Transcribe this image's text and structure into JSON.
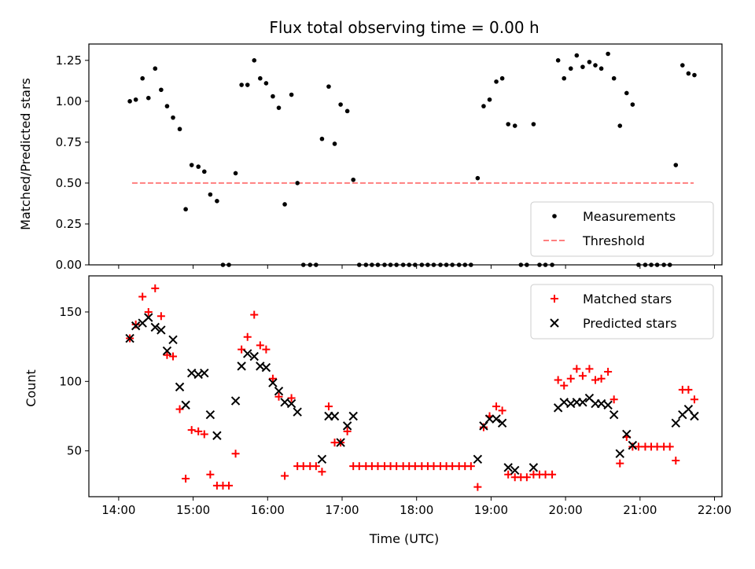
{
  "chart_data": [
    {
      "type": "scatter",
      "title": "Flux total observing time = 0.00 h",
      "xlabel": "",
      "ylabel": "Matched/Predicted stars",
      "xlim": [
        13.6,
        22.1
      ],
      "ylim": [
        0.0,
        1.35
      ],
      "x_ticks": [
        14,
        15,
        16,
        17,
        18,
        19,
        20,
        21,
        22
      ],
      "x_tick_labels_visible": false,
      "y_ticks": [
        0.0,
        0.25,
        0.5,
        0.75,
        1.0,
        1.25
      ],
      "y_tick_labels": [
        "0.00",
        "0.25",
        "0.50",
        "0.75",
        "1.00",
        "1.25"
      ],
      "legend": {
        "placement": "lower-right",
        "entries": [
          {
            "key": "measurements",
            "label": "Measurements",
            "marker": "dot",
            "color": "#000000"
          },
          {
            "key": "threshold",
            "label": "Threshold",
            "marker": "dashed-line",
            "color": "#ff7f7f"
          }
        ]
      },
      "threshold": {
        "value": 0.5,
        "x_range": [
          14.18,
          21.72
        ],
        "color": "#ff7f7f"
      },
      "series": [
        {
          "name": "Measurements",
          "color": "#000000",
          "x": [
            14.15,
            14.23,
            14.32,
            14.4,
            14.49,
            14.57,
            14.65,
            14.73,
            14.82,
            14.9,
            14.98,
            15.07,
            15.15,
            15.23,
            15.32,
            15.4,
            15.48,
            15.57,
            15.65,
            15.73,
            15.82,
            15.9,
            15.98,
            16.07,
            16.15,
            16.23,
            16.32,
            16.4,
            16.48,
            16.57,
            16.65,
            16.73,
            16.82,
            16.9,
            16.98,
            17.07,
            17.15,
            17.23,
            17.32,
            17.4,
            17.48,
            17.57,
            17.65,
            17.73,
            17.82,
            17.9,
            17.98,
            18.07,
            18.15,
            18.23,
            18.32,
            18.4,
            18.48,
            18.57,
            18.65,
            18.73,
            18.82,
            18.9,
            18.98,
            19.07,
            19.15,
            19.23,
            19.32,
            19.4,
            19.48,
            19.57,
            19.65,
            19.73,
            19.82,
            19.9,
            19.98,
            20.07,
            20.15,
            20.23,
            20.32,
            20.4,
            20.48,
            20.57,
            20.65,
            20.73,
            20.82,
            20.9,
            20.98,
            21.07,
            21.15,
            21.23,
            21.32,
            21.4,
            21.48,
            21.57,
            21.65,
            21.73
          ],
          "y": [
            1.0,
            1.01,
            1.14,
            1.02,
            1.2,
            1.07,
            0.97,
            0.9,
            0.83,
            0.34,
            0.61,
            0.6,
            0.57,
            0.43,
            0.39,
            0.0,
            0.0,
            0.56,
            1.1,
            1.1,
            1.25,
            1.14,
            1.11,
            1.03,
            0.96,
            0.37,
            1.04,
            0.5,
            0.0,
            0.0,
            0.0,
            0.77,
            1.09,
            0.74,
            0.98,
            0.94,
            0.52,
            0.0,
            0.0,
            0.0,
            0.0,
            0.0,
            0.0,
            0.0,
            0.0,
            0.0,
            0.0,
            0.0,
            0.0,
            0.0,
            0.0,
            0.0,
            0.0,
            0.0,
            0.0,
            0.0,
            0.53,
            0.97,
            1.01,
            1.12,
            1.14,
            0.86,
            0.85,
            0.0,
            0.0,
            0.86,
            0.0,
            0.0,
            0.0,
            1.25,
            1.14,
            1.2,
            1.28,
            1.21,
            1.24,
            1.22,
            1.2,
            1.29,
            1.14,
            0.85,
            1.05,
            0.98,
            0.0,
            0.0,
            0.0,
            0.0,
            0.0,
            0.0,
            0.61,
            1.22,
            1.17,
            1.16
          ]
        }
      ]
    },
    {
      "type": "scatter",
      "title": "",
      "xlabel": "Time (UTC)",
      "ylabel": "Count",
      "xlim": [
        13.6,
        22.1
      ],
      "ylim": [
        17,
        176
      ],
      "x_ticks": [
        14,
        15,
        16,
        17,
        18,
        19,
        20,
        21,
        22
      ],
      "x_tick_labels": [
        "14:00",
        "15:00",
        "16:00",
        "17:00",
        "18:00",
        "19:00",
        "20:00",
        "21:00",
        "22:00"
      ],
      "y_ticks": [
        50,
        100,
        150
      ],
      "y_tick_labels": [
        "50",
        "100",
        "150"
      ],
      "legend": {
        "placement": "top-right",
        "entries": [
          {
            "key": "matched",
            "label": "Matched stars",
            "marker": "plus",
            "color": "#ff0000"
          },
          {
            "key": "predicted",
            "label": "Predicted stars",
            "marker": "x",
            "color": "#000000"
          }
        ]
      },
      "series": [
        {
          "name": "Matched stars",
          "color": "#ff0000",
          "x": [
            14.15,
            14.23,
            14.32,
            14.4,
            14.49,
            14.57,
            14.65,
            14.73,
            14.82,
            14.9,
            14.98,
            15.07,
            15.15,
            15.23,
            15.32,
            15.4,
            15.48,
            15.57,
            15.65,
            15.73,
            15.82,
            15.9,
            15.98,
            16.07,
            16.15,
            16.23,
            16.32,
            16.4,
            16.48,
            16.57,
            16.65,
            16.73,
            16.82,
            16.9,
            16.98,
            17.07,
            17.15,
            17.23,
            17.32,
            17.4,
            17.48,
            17.57,
            17.65,
            17.73,
            17.82,
            17.9,
            17.98,
            18.07,
            18.15,
            18.23,
            18.32,
            18.4,
            18.48,
            18.57,
            18.65,
            18.73,
            18.82,
            18.9,
            18.98,
            19.07,
            19.15,
            19.23,
            19.32,
            19.4,
            19.48,
            19.57,
            19.65,
            19.73,
            19.82,
            19.9,
            19.98,
            20.07,
            20.15,
            20.23,
            20.32,
            20.4,
            20.48,
            20.57,
            20.65,
            20.73,
            20.82,
            20.9,
            20.98,
            21.07,
            21.15,
            21.23,
            21.32,
            21.4,
            21.48,
            21.57,
            21.65,
            21.73
          ],
          "y": [
            131,
            141,
            161,
            150,
            167,
            147,
            119,
            118,
            80,
            30,
            65,
            64,
            62,
            33,
            25,
            25,
            25,
            48,
            123,
            132,
            148,
            126,
            123,
            102,
            89,
            32,
            88,
            39,
            39,
            39,
            39,
            35,
            82,
            56,
            56,
            64,
            39,
            39,
            39,
            39,
            39,
            39,
            39,
            39,
            39,
            39,
            39,
            39,
            39,
            39,
            39,
            39,
            39,
            39,
            39,
            39,
            24,
            67,
            75,
            82,
            79,
            33,
            31,
            31,
            31,
            33,
            33,
            33,
            33,
            101,
            97,
            102,
            109,
            104,
            109,
            101,
            102,
            107,
            87,
            41,
            60,
            53,
            53,
            53,
            53,
            53,
            53,
            53,
            43,
            94,
            94,
            87
          ]
        },
        {
          "name": "Predicted stars",
          "color": "#000000",
          "x": [
            14.15,
            14.23,
            14.32,
            14.4,
            14.49,
            14.57,
            14.65,
            14.73,
            14.82,
            14.9,
            14.98,
            15.07,
            15.15,
            15.23,
            15.32,
            15.57,
            15.65,
            15.73,
            15.82,
            15.9,
            15.98,
            16.07,
            16.15,
            16.23,
            16.32,
            16.4,
            16.73,
            16.82,
            16.9,
            16.98,
            17.07,
            17.15,
            18.82,
            18.9,
            18.98,
            19.07,
            19.15,
            19.23,
            19.32,
            19.57,
            19.9,
            19.98,
            20.07,
            20.15,
            20.23,
            20.32,
            20.4,
            20.48,
            20.57,
            20.65,
            20.73,
            20.82,
            20.9,
            21.48,
            21.57,
            21.65,
            21.73
          ],
          "y": [
            131,
            140,
            142,
            146,
            139,
            137,
            122,
            130,
            96,
            83,
            106,
            105,
            106,
            76,
            61,
            86,
            111,
            120,
            118,
            111,
            110,
            99,
            93,
            85,
            84,
            78,
            44,
            75,
            75,
            56,
            68,
            75,
            44,
            68,
            73,
            73,
            70,
            38,
            36,
            38,
            81,
            85,
            84,
            85,
            85,
            88,
            84,
            84,
            83,
            76,
            48,
            62,
            54,
            70,
            76,
            80,
            75
          ]
        }
      ]
    }
  ]
}
